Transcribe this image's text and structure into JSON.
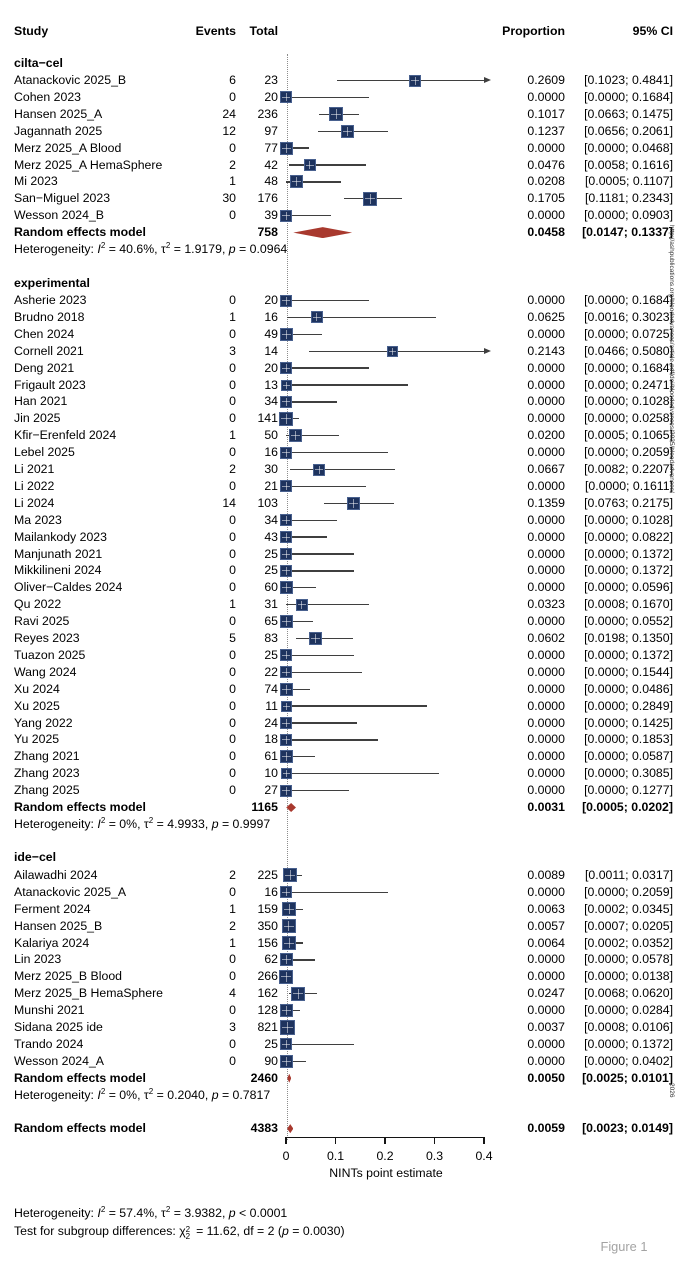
{
  "chart_data": {
    "type": "forest",
    "columns": {
      "study": "Study",
      "events": "Events",
      "total": "Total",
      "proportion": "Proportion",
      "ci": "95% CI"
    },
    "axis": {
      "label": "NINTs point estimate",
      "values": [
        0,
        0.1,
        0.2,
        0.3,
        0.4
      ],
      "ticks": [
        "0",
        "0.1",
        "0.2",
        "0.3",
        "0.4"
      ],
      "min": 0,
      "max": 0.4
    },
    "groups": [
      {
        "name": "cilta−cel",
        "studies": [
          {
            "study": "Atanackovic 2025_B",
            "events": 6,
            "total": 23,
            "proportion": 0.2609,
            "ci_lo": 0.1023,
            "ci_hi": 0.4841,
            "arrow": true
          },
          {
            "study": "Cohen 2023",
            "events": 0,
            "total": 20,
            "proportion": 0.0,
            "ci_lo": 0.0,
            "ci_hi": 0.1684
          },
          {
            "study": "Hansen 2025_A",
            "events": 24,
            "total": 236,
            "proportion": 0.1017,
            "ci_lo": 0.0663,
            "ci_hi": 0.1475
          },
          {
            "study": "Jagannath 2025",
            "events": 12,
            "total": 97,
            "proportion": 0.1237,
            "ci_lo": 0.0656,
            "ci_hi": 0.2061
          },
          {
            "study": "Merz 2025_A Blood",
            "events": 0,
            "total": 77,
            "proportion": 0.0,
            "ci_lo": 0.0,
            "ci_hi": 0.0468
          },
          {
            "study": "Merz 2025_A HemaSphere",
            "events": 2,
            "total": 42,
            "proportion": 0.0476,
            "ci_lo": 0.0058,
            "ci_hi": 0.1616
          },
          {
            "study": "Mi 2023",
            "events": 1,
            "total": 48,
            "proportion": 0.0208,
            "ci_lo": 0.0005,
            "ci_hi": 0.1107
          },
          {
            "study": "San−Miguel 2023",
            "events": 30,
            "total": 176,
            "proportion": 0.1705,
            "ci_lo": 0.1181,
            "ci_hi": 0.2343
          },
          {
            "study": "Wesson 2024_B",
            "events": 0,
            "total": 39,
            "proportion": 0.0,
            "ci_lo": 0.0,
            "ci_hi": 0.0903
          }
        ],
        "summary": {
          "label": "Random effects model",
          "total": 758,
          "proportion": 0.0458,
          "ci_lo": 0.0147,
          "ci_hi": 0.1337
        },
        "heterogeneity": {
          "i2": "40.6%",
          "tau2": "1.9179",
          "p": "= 0.0964"
        }
      },
      {
        "name": "experimental",
        "studies": [
          {
            "study": "Asherie 2023",
            "events": 0,
            "total": 20,
            "proportion": 0.0,
            "ci_lo": 0.0,
            "ci_hi": 0.1684
          },
          {
            "study": "Brudno 2018",
            "events": 1,
            "total": 16,
            "proportion": 0.0625,
            "ci_lo": 0.0016,
            "ci_hi": 0.3023
          },
          {
            "study": "Chen 2024",
            "events": 0,
            "total": 49,
            "proportion": 0.0,
            "ci_lo": 0.0,
            "ci_hi": 0.0725
          },
          {
            "study": "Cornell 2021",
            "events": 3,
            "total": 14,
            "proportion": 0.2143,
            "ci_lo": 0.0466,
            "ci_hi": 0.508,
            "arrow": true
          },
          {
            "study": "Deng 2021",
            "events": 0,
            "total": 20,
            "proportion": 0.0,
            "ci_lo": 0.0,
            "ci_hi": 0.1684
          },
          {
            "study": "Frigault 2023",
            "events": 0,
            "total": 13,
            "proportion": 0.0,
            "ci_lo": 0.0,
            "ci_hi": 0.2471
          },
          {
            "study": "Han 2021",
            "events": 0,
            "total": 34,
            "proportion": 0.0,
            "ci_lo": 0.0,
            "ci_hi": 0.1028
          },
          {
            "study": "Jin 2025",
            "events": 0,
            "total": 141,
            "proportion": 0.0,
            "ci_lo": 0.0,
            "ci_hi": 0.0258
          },
          {
            "study": "Kfir−Erenfeld 2024",
            "events": 1,
            "total": 50,
            "proportion": 0.02,
            "ci_lo": 0.0005,
            "ci_hi": 0.1065
          },
          {
            "study": "Lebel 2025",
            "events": 0,
            "total": 16,
            "proportion": 0.0,
            "ci_lo": 0.0,
            "ci_hi": 0.2059
          },
          {
            "study": "Li 2021",
            "events": 2,
            "total": 30,
            "proportion": 0.0667,
            "ci_lo": 0.0082,
            "ci_hi": 0.2207
          },
          {
            "study": "Li 2022",
            "events": 0,
            "total": 21,
            "proportion": 0.0,
            "ci_lo": 0.0,
            "ci_hi": 0.1611
          },
          {
            "study": "Li 2024",
            "events": 14,
            "total": 103,
            "proportion": 0.1359,
            "ci_lo": 0.0763,
            "ci_hi": 0.2175
          },
          {
            "study": "Ma 2023",
            "events": 0,
            "total": 34,
            "proportion": 0.0,
            "ci_lo": 0.0,
            "ci_hi": 0.1028
          },
          {
            "study": "Mailankody 2023",
            "events": 0,
            "total": 43,
            "proportion": 0.0,
            "ci_lo": 0.0,
            "ci_hi": 0.0822
          },
          {
            "study": "Manjunath 2021",
            "events": 0,
            "total": 25,
            "proportion": 0.0,
            "ci_lo": 0.0,
            "ci_hi": 0.1372
          },
          {
            "study": "Mikkilineni 2024",
            "events": 0,
            "total": 25,
            "proportion": 0.0,
            "ci_lo": 0.0,
            "ci_hi": 0.1372
          },
          {
            "study": "Oliver−Caldes 2024",
            "events": 0,
            "total": 60,
            "proportion": 0.0,
            "ci_lo": 0.0,
            "ci_hi": 0.0596
          },
          {
            "study": "Qu 2022",
            "events": 1,
            "total": 31,
            "proportion": 0.0323,
            "ci_lo": 0.0008,
            "ci_hi": 0.167
          },
          {
            "study": "Ravi 2025",
            "events": 0,
            "total": 65,
            "proportion": 0.0,
            "ci_lo": 0.0,
            "ci_hi": 0.0552
          },
          {
            "study": "Reyes 2023",
            "events": 5,
            "total": 83,
            "proportion": 0.0602,
            "ci_lo": 0.0198,
            "ci_hi": 0.135
          },
          {
            "study": "Tuazon 2025",
            "events": 0,
            "total": 25,
            "proportion": 0.0,
            "ci_lo": 0.0,
            "ci_hi": 0.1372
          },
          {
            "study": "Wang 2024",
            "events": 0,
            "total": 22,
            "proportion": 0.0,
            "ci_lo": 0.0,
            "ci_hi": 0.1544
          },
          {
            "study": "Xu 2024",
            "events": 0,
            "total": 74,
            "proportion": 0.0,
            "ci_lo": 0.0,
            "ci_hi": 0.0486
          },
          {
            "study": "Xu 2025",
            "events": 0,
            "total": 11,
            "proportion": 0.0,
            "ci_lo": 0.0,
            "ci_hi": 0.2849
          },
          {
            "study": "Yang 2022",
            "events": 0,
            "total": 24,
            "proportion": 0.0,
            "ci_lo": 0.0,
            "ci_hi": 0.1425
          },
          {
            "study": "Yu 2025",
            "events": 0,
            "total": 18,
            "proportion": 0.0,
            "ci_lo": 0.0,
            "ci_hi": 0.1853
          },
          {
            "study": "Zhang 2021",
            "events": 0,
            "total": 61,
            "proportion": 0.0,
            "ci_lo": 0.0,
            "ci_hi": 0.0587
          },
          {
            "study": "Zhang 2023",
            "events": 0,
            "total": 10,
            "proportion": 0.0,
            "ci_lo": 0.0,
            "ci_hi": 0.3085
          },
          {
            "study": "Zhang 2025",
            "events": 0,
            "total": 27,
            "proportion": 0.0,
            "ci_lo": 0.0,
            "ci_hi": 0.1277
          }
        ],
        "summary": {
          "label": "Random effects model",
          "total": 1165,
          "proportion": 0.0031,
          "ci_lo": 0.0005,
          "ci_hi": 0.0202
        },
        "heterogeneity": {
          "i2": "0%",
          "tau2": "4.9933",
          "p": "= 0.9997"
        }
      },
      {
        "name": "ide−cel",
        "studies": [
          {
            "study": "Ailawadhi 2024",
            "events": 2,
            "total": 225,
            "proportion": 0.0089,
            "ci_lo": 0.0011,
            "ci_hi": 0.0317
          },
          {
            "study": "Atanackovic 2025_A",
            "events": 0,
            "total": 16,
            "proportion": 0.0,
            "ci_lo": 0.0,
            "ci_hi": 0.2059
          },
          {
            "study": "Ferment 2024",
            "events": 1,
            "total": 159,
            "proportion": 0.0063,
            "ci_lo": 0.0002,
            "ci_hi": 0.0345
          },
          {
            "study": "Hansen 2025_B",
            "events": 2,
            "total": 350,
            "proportion": 0.0057,
            "ci_lo": 0.0007,
            "ci_hi": 0.0205
          },
          {
            "study": "Kalariya 2024",
            "events": 1,
            "total": 156,
            "proportion": 0.0064,
            "ci_lo": 0.0002,
            "ci_hi": 0.0352
          },
          {
            "study": "Lin 2023",
            "events": 0,
            "total": 62,
            "proportion": 0.0,
            "ci_lo": 0.0,
            "ci_hi": 0.0578
          },
          {
            "study": "Merz 2025_B Blood",
            "events": 0,
            "total": 266,
            "proportion": 0.0,
            "ci_lo": 0.0,
            "ci_hi": 0.0138
          },
          {
            "study": "Merz 2025_B HemaSphere",
            "events": 4,
            "total": 162,
            "proportion": 0.0247,
            "ci_lo": 0.0068,
            "ci_hi": 0.062
          },
          {
            "study": "Munshi 2021",
            "events": 0,
            "total": 128,
            "proportion": 0.0,
            "ci_lo": 0.0,
            "ci_hi": 0.0284
          },
          {
            "study": "Sidana 2025 ide",
            "events": 3,
            "total": 821,
            "proportion": 0.0037,
            "ci_lo": 0.0008,
            "ci_hi": 0.0106
          },
          {
            "study": "Trando 2024",
            "events": 0,
            "total": 25,
            "proportion": 0.0,
            "ci_lo": 0.0,
            "ci_hi": 0.1372
          },
          {
            "study": "Wesson 2024_A",
            "events": 0,
            "total": 90,
            "proportion": 0.0,
            "ci_lo": 0.0,
            "ci_hi": 0.0402
          }
        ],
        "summary": {
          "label": "Random effects model",
          "total": 2460,
          "proportion": 0.005,
          "ci_lo": 0.0025,
          "ci_hi": 0.0101
        },
        "heterogeneity": {
          "i2": "0%",
          "tau2": "0.2040",
          "p": "= 0.7817"
        }
      }
    ],
    "overall": {
      "label": "Random effects model",
      "total": 4383,
      "proportion": 0.0059,
      "ci_lo": 0.0023,
      "ci_hi": 0.0149
    },
    "footer": {
      "heterogeneity": {
        "i2": "57.4%",
        "tau2": "3.9382",
        "p": "< 0.0001"
      },
      "subgroup_test": {
        "chi2": "11.62",
        "df": "2",
        "p": "0.0030"
      }
    }
  },
  "caption": "Figure 1",
  "watermark": {
    "text": "http://ashpublications.org/bloodadvances/article-pdf/doi/bloodadvances/2025/bloodadvances/",
    "suffix": "2026"
  },
  "colors": {
    "square": "#1E335E",
    "square_border": "#49618F",
    "diamond": "#A8392E",
    "line": "#3F3F3F",
    "axis": "#141414",
    "dotted": "#8C8C8C",
    "caption": "#A3A3A3"
  }
}
